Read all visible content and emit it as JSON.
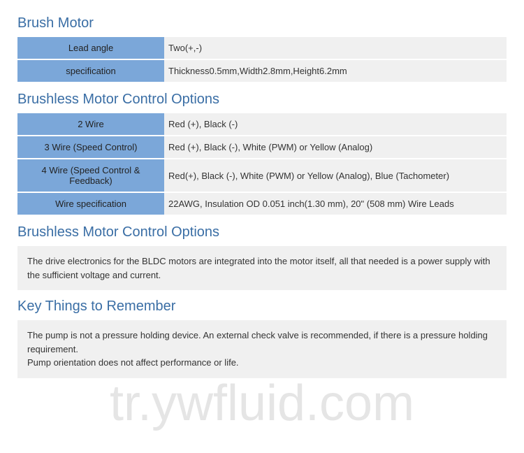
{
  "section1": {
    "title": "Brush Motor",
    "rows": [
      {
        "label": "Lead angle",
        "value": "Two(+,-)"
      },
      {
        "label": "specification",
        "value": "Thickness0.5mm,Width2.8mm,Height6.2mm"
      }
    ]
  },
  "section2": {
    "title": "Brushless Motor Control Options",
    "rows": [
      {
        "label": "2 Wire",
        "value": "Red (+), Black (-)"
      },
      {
        "label": "3 Wire (Speed Control)",
        "value": "Red (+), Black (-), White (PWM) or Yellow (Analog)"
      },
      {
        "label": "4 Wire (Speed Control & Feedback)",
        "value": "Red(+), Black (-), White (PWM) or Yellow (Analog), Blue (Tachometer)"
      },
      {
        "label": "Wire specification",
        "value": "22AWG, Insulation OD 0.051 inch(1.30 mm), 20\" (508 mm) Wire Leads"
      }
    ]
  },
  "section3": {
    "title": "Brushless Motor Control Options",
    "text": "The drive electronics for the BLDC motors are integrated into the motor itself, all that needed is a power supply with the sufficient voltage and current."
  },
  "section4": {
    "title": "Key Things to Remember",
    "text1": "The pump is not a pressure holding device. An external check valve is recommended, if there is a pressure holding requirement.",
    "text2": "Pump orientation does not affect performance or life."
  },
  "watermark": "tr.ywfluid.com",
  "colors": {
    "title": "#3a6ea5",
    "label_bg": "#7ba7d9",
    "value_bg": "#f0f0f0",
    "watermark": "rgba(180,180,180,0.35)"
  }
}
